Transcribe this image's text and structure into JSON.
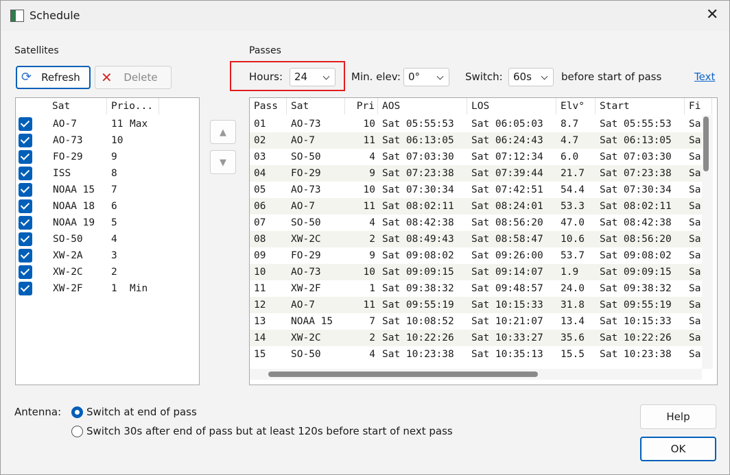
{
  "window": {
    "title": "Schedule"
  },
  "satellites": {
    "label": "Satellites",
    "refresh": "Refresh",
    "delete": "Delete",
    "columns": [
      "Sat",
      "Prio..."
    ],
    "rows": [
      [
        "AO-7",
        "11",
        "Max"
      ],
      [
        "AO-73",
        "10"
      ],
      [
        "FO-29",
        "9"
      ],
      [
        "ISS",
        "8"
      ],
      [
        "NOAA 15",
        "7"
      ],
      [
        "NOAA 18",
        "6"
      ],
      [
        "NOAA 19",
        "5"
      ],
      [
        "SO-50",
        "4"
      ],
      [
        "XW-2A",
        "3"
      ],
      [
        "XW-2C",
        "2"
      ],
      [
        "XW-2F",
        "1",
        "Min"
      ]
    ]
  },
  "passes": {
    "label": "Passes",
    "hours_label": "Hours:",
    "hours": "24",
    "min_elev_label": "Min. elev:",
    "min_elev": "0°",
    "switch_label": "Switch:",
    "switch": "60s",
    "switch_suffix": "before start of pass",
    "text_link": "Text",
    "columns": [
      "Pass",
      "Sat",
      "Pri",
      "AOS",
      "LOS",
      "Elv°",
      "Start",
      "Fi"
    ],
    "rows": [
      [
        "01",
        "AO-73",
        "10",
        "Sat 05:55:53",
        "Sat 06:05:03",
        "8.7",
        "Sat 05:55:53",
        "Sa"
      ],
      [
        "02",
        "AO-7",
        "11",
        "Sat 06:13:05",
        "Sat 06:24:43",
        "4.7",
        "Sat 06:13:05",
        "Sa"
      ],
      [
        "03",
        "SO-50",
        "4",
        "Sat 07:03:30",
        "Sat 07:12:34",
        "6.0",
        "Sat 07:03:30",
        "Sa"
      ],
      [
        "04",
        "FO-29",
        "9",
        "Sat 07:23:38",
        "Sat 07:39:44",
        "21.7",
        "Sat 07:23:38",
        "Sa"
      ],
      [
        "05",
        "AO-73",
        "10",
        "Sat 07:30:34",
        "Sat 07:42:51",
        "54.4",
        "Sat 07:30:34",
        "Sa"
      ],
      [
        "06",
        "AO-7",
        "11",
        "Sat 08:02:11",
        "Sat 08:24:01",
        "53.3",
        "Sat 08:02:11",
        "Sa"
      ],
      [
        "07",
        "SO-50",
        "4",
        "Sat 08:42:38",
        "Sat 08:56:20",
        "47.0",
        "Sat 08:42:38",
        "Sa"
      ],
      [
        "08",
        "XW-2C",
        "2",
        "Sat 08:49:43",
        "Sat 08:58:47",
        "10.6",
        "Sat 08:56:20",
        "Sa"
      ],
      [
        "09",
        "FO-29",
        "9",
        "Sat 09:08:02",
        "Sat 09:26:00",
        "53.7",
        "Sat 09:08:02",
        "Sa"
      ],
      [
        "10",
        "AO-73",
        "10",
        "Sat 09:09:15",
        "Sat 09:14:07",
        "1.9",
        "Sat 09:09:15",
        "Sa"
      ],
      [
        "11",
        "XW-2F",
        "1",
        "Sat 09:38:32",
        "Sat 09:48:57",
        "24.0",
        "Sat 09:38:32",
        "Sa"
      ],
      [
        "12",
        "AO-7",
        "11",
        "Sat 09:55:19",
        "Sat 10:15:33",
        "31.8",
        "Sat 09:55:19",
        "Sa"
      ],
      [
        "13",
        "NOAA 15",
        "7",
        "Sat 10:08:52",
        "Sat 10:21:07",
        "13.4",
        "Sat 10:15:33",
        "Sa"
      ],
      [
        "14",
        "XW-2C",
        "2",
        "Sat 10:22:26",
        "Sat 10:33:27",
        "35.6",
        "Sat 10:22:26",
        "Sa"
      ],
      [
        "15",
        "SO-50",
        "4",
        "Sat 10:23:38",
        "Sat 10:35:13",
        "15.5",
        "Sat 10:23:38",
        "Sa"
      ]
    ]
  },
  "antenna": {
    "label": "Antenna:",
    "options": [
      "Switch at end of pass",
      "Switch 30s after end of pass but at least 120s before start of next pass"
    ],
    "selected": 0
  },
  "buttons": {
    "help": "Help",
    "ok": "OK"
  }
}
